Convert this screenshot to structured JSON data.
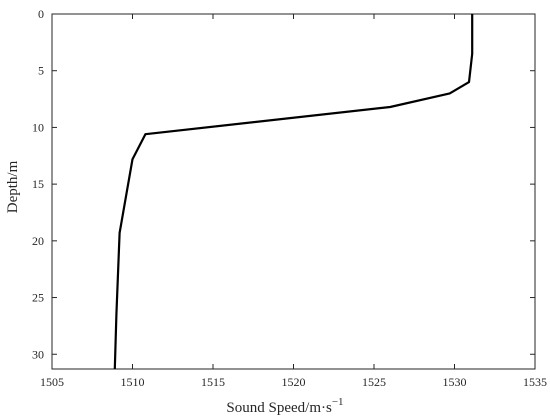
{
  "chart_data": {
    "type": "line",
    "title": "",
    "xlabel": "Sound Speed/m·s",
    "xlabel_sup": "−1",
    "ylabel": "Depth/m",
    "xlim": [
      1505,
      1535
    ],
    "ylim": [
      0,
      31.3
    ],
    "y_inverted": true,
    "grid": false,
    "xticks": [
      1505,
      1510,
      1515,
      1520,
      1525,
      1530,
      1535
    ],
    "yticks": [
      0,
      5,
      10,
      15,
      20,
      25,
      30
    ],
    "series": [
      {
        "color": "#000000",
        "x": [
          1531.1,
          1531.1,
          1531.1,
          1530.9,
          1529.7,
          1526.0,
          1510.8,
          1510.0,
          1509.2,
          1509.0,
          1508.9
        ],
        "y": [
          0,
          2.0,
          3.5,
          6.0,
          7.0,
          8.2,
          10.6,
          12.8,
          19.3,
          26.5,
          31.3
        ]
      }
    ]
  }
}
